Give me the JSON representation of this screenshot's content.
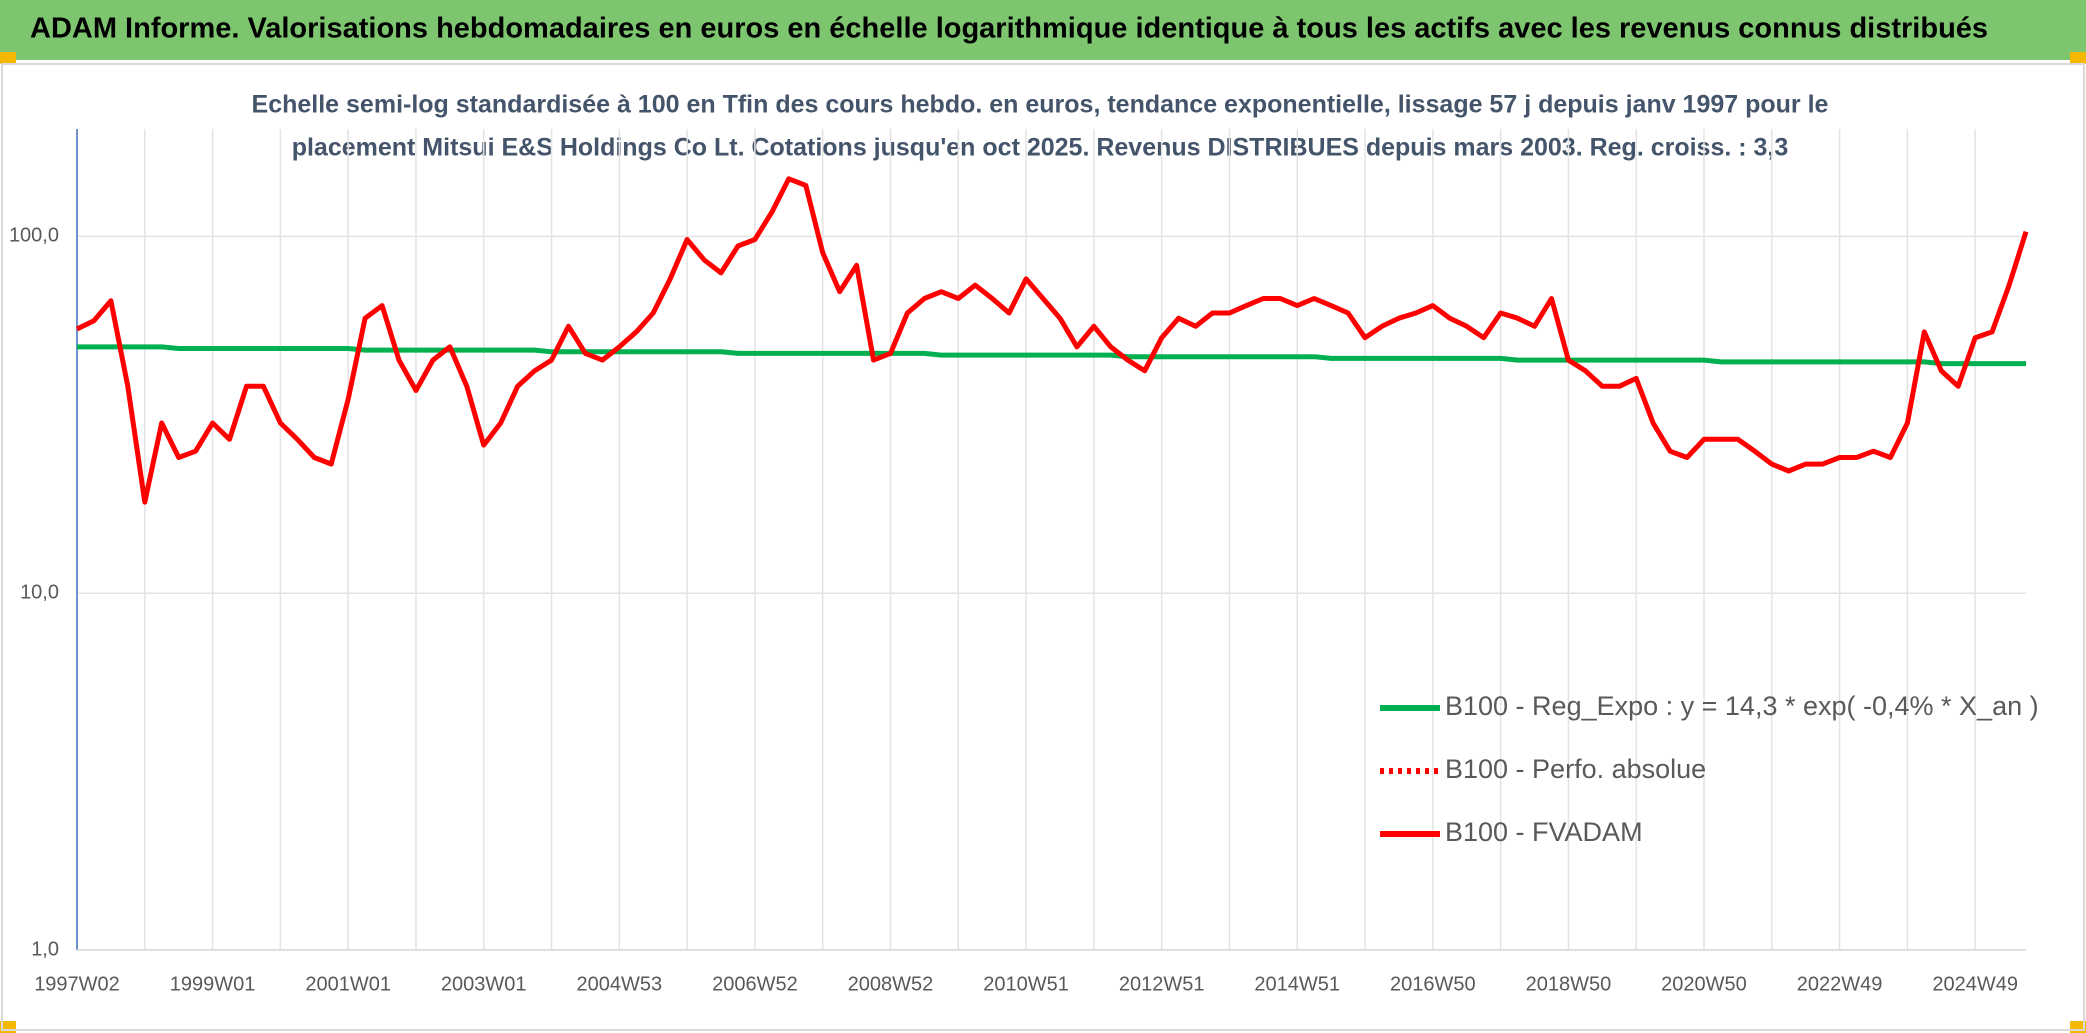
{
  "chart_data": {
    "type": "line",
    "title": "ADAM Informe. Valorisations hebdomadaires en euros en échelle logarithmique identique à tous les actifs avec les revenus connus distribués",
    "subtitle": [
      "Echelle semi-log standardisée à 100 en Tfin des cours hebdo. en euros, tendance exponentielle, lissage 57 j depuis janv 1997 pour le",
      "placement Mitsui E&S Holdings Co Lt. Cotations jusqu'en oct 2025. Revenus DISTRIBUES depuis mars 2003. Reg. croiss. : 3,3"
    ],
    "log_scale": true,
    "grid": true,
    "legend": "right",
    "ylim": [
      1,
      200
    ],
    "yticks": [
      {
        "value": 1,
        "label": "1,0"
      },
      {
        "value": 10,
        "label": "10,0"
      },
      {
        "value": 100,
        "label": "100,0"
      }
    ],
    "categories": [
      "1997W02",
      null,
      null,
      null,
      null,
      null,
      null,
      null,
      "1999W01",
      null,
      null,
      null,
      null,
      null,
      null,
      null,
      "2001W01",
      null,
      null,
      null,
      null,
      null,
      null,
      null,
      "2003W01",
      null,
      null,
      null,
      null,
      null,
      null,
      null,
      "2004W53",
      null,
      null,
      null,
      null,
      null,
      null,
      null,
      "2006W52",
      null,
      null,
      null,
      null,
      null,
      null,
      null,
      "2008W52",
      null,
      null,
      null,
      null,
      null,
      null,
      null,
      "2010W51",
      null,
      null,
      null,
      null,
      null,
      null,
      null,
      "2012W51",
      null,
      null,
      null,
      null,
      null,
      null,
      null,
      "2014W51",
      null,
      null,
      null,
      null,
      null,
      null,
      null,
      "2016W50",
      null,
      null,
      null,
      null,
      null,
      null,
      null,
      "2018W50",
      null,
      null,
      null,
      null,
      null,
      null,
      null,
      "2020W50",
      null,
      null,
      null,
      null,
      null,
      null,
      null,
      "2022W49",
      null,
      null,
      null,
      null,
      null,
      null,
      null,
      "2024W49",
      null,
      null,
      null
    ],
    "series": [
      {
        "name": "B100 - Reg_Expo : y = 14,3 * exp( -0,4% *  X_an )",
        "color": "#00b050",
        "line_style": "solid",
        "values": [
          49,
          49,
          49,
          49,
          49,
          49,
          48.5,
          48.5,
          48.5,
          48.5,
          48.5,
          48.5,
          48.5,
          48.5,
          48.5,
          48.5,
          48.5,
          48,
          48,
          48,
          48,
          48,
          48,
          48,
          48,
          48,
          48,
          48,
          47.5,
          47.5,
          47.5,
          47.5,
          47.5,
          47.5,
          47.5,
          47.5,
          47.5,
          47.5,
          47.5,
          47,
          47,
          47,
          47,
          47,
          47,
          47,
          47,
          47,
          47,
          47,
          47,
          46.5,
          46.5,
          46.5,
          46.5,
          46.5,
          46.5,
          46.5,
          46.5,
          46.5,
          46.5,
          46.5,
          46,
          46,
          46,
          46,
          46,
          46,
          46,
          46,
          46,
          46,
          46,
          46,
          45.5,
          45.5,
          45.5,
          45.5,
          45.5,
          45.5,
          45.5,
          45.5,
          45.5,
          45.5,
          45.5,
          45,
          45,
          45,
          45,
          45,
          45,
          45,
          45,
          45,
          45,
          45,
          45,
          44.5,
          44.5,
          44.5,
          44.5,
          44.5,
          44.5,
          44.5,
          44.5,
          44.5,
          44.5,
          44.5,
          44.5,
          44.5,
          44,
          44,
          44,
          44,
          44,
          44
        ]
      },
      {
        "name": "B100 - Perfo. absolue",
        "color": "#ff0000",
        "line_style": "dotted",
        "values": [
          55,
          58,
          66,
          38,
          18,
          30,
          24,
          25,
          30,
          27,
          38,
          38,
          30,
          27,
          24,
          23,
          35,
          59,
          64,
          45,
          37,
          45,
          49,
          38,
          26,
          30,
          38,
          42,
          45,
          56,
          47,
          45,
          49,
          54,
          61,
          76,
          98,
          86,
          79,
          94,
          98,
          117,
          145,
          139,
          90,
          70,
          83,
          45,
          47,
          61,
          67,
          70,
          67,
          73,
          67,
          61,
          76,
          67,
          59,
          49,
          56,
          49,
          45,
          42,
          52,
          59,
          56,
          61,
          61,
          64,
          67,
          67,
          64,
          67,
          64,
          61,
          52,
          56,
          59,
          61,
          64,
          59,
          56,
          52,
          61,
          59,
          56,
          67,
          45,
          42,
          38,
          38,
          40,
          30,
          25,
          24,
          27,
          27,
          27,
          25,
          23,
          22,
          23,
          23,
          24,
          24,
          25,
          24,
          30,
          54,
          42,
          38,
          52,
          54,
          73,
          103
        ]
      },
      {
        "name": "B100 - FVADAM",
        "color": "#ff0000",
        "line_style": "solid",
        "values": [
          55,
          58,
          66,
          38,
          18,
          30,
          24,
          25,
          30,
          27,
          38,
          38,
          30,
          27,
          24,
          23,
          35,
          59,
          64,
          45,
          37,
          45,
          49,
          38,
          26,
          30,
          38,
          42,
          45,
          56,
          47,
          45,
          49,
          54,
          61,
          76,
          98,
          86,
          79,
          94,
          98,
          117,
          145,
          139,
          90,
          70,
          83,
          45,
          47,
          61,
          67,
          70,
          67,
          73,
          67,
          61,
          76,
          67,
          59,
          49,
          56,
          49,
          45,
          42,
          52,
          59,
          56,
          61,
          61,
          64,
          67,
          67,
          64,
          67,
          64,
          61,
          52,
          56,
          59,
          61,
          64,
          59,
          56,
          52,
          61,
          59,
          56,
          67,
          45,
          42,
          38,
          38,
          40,
          30,
          25,
          24,
          27,
          27,
          27,
          25,
          23,
          22,
          23,
          23,
          24,
          24,
          25,
          24,
          30,
          54,
          42,
          38,
          52,
          54,
          73,
          103
        ]
      }
    ]
  }
}
